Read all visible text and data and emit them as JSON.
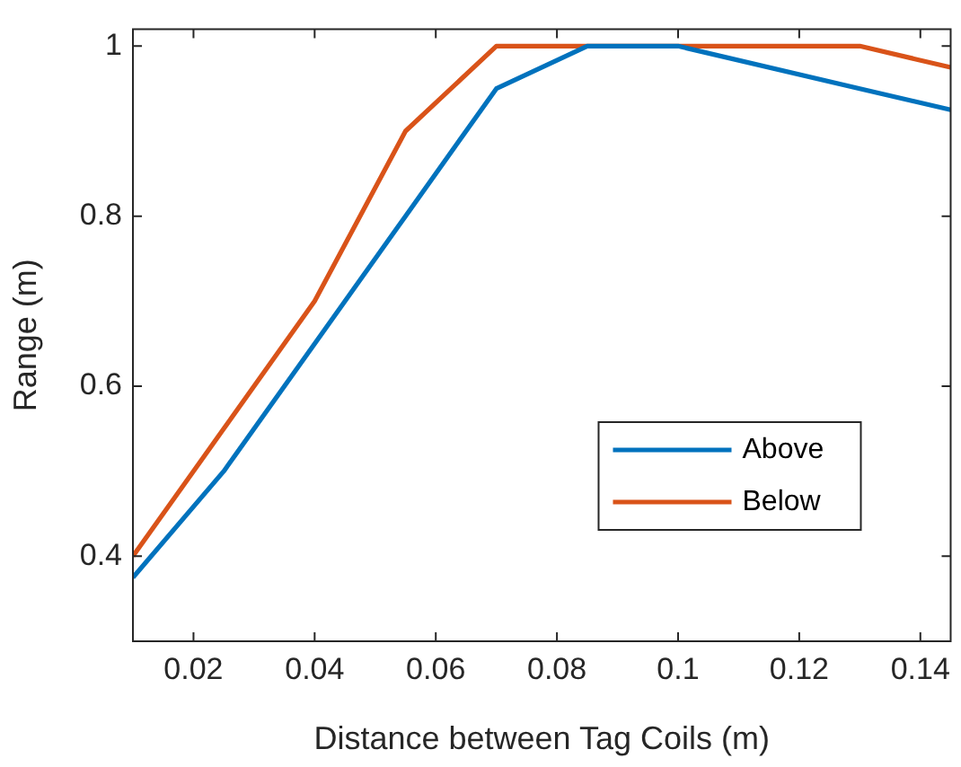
{
  "chart_data": {
    "type": "line",
    "xlabel": "Distance between Tag Coils (m)",
    "ylabel": "Range (m)",
    "x": [
      0.01,
      0.025,
      0.04,
      0.055,
      0.07,
      0.085,
      0.1,
      0.13,
      0.145
    ],
    "series": [
      {
        "name": "Above",
        "color": "#0072bd",
        "values": [
          0.375,
          0.5,
          0.65,
          0.8,
          0.95,
          1,
          1,
          0.95,
          0.925
        ]
      },
      {
        "name": "Below",
        "color": "#d95319",
        "values": [
          0.4,
          0.55,
          0.7,
          0.9,
          1,
          1,
          1,
          1,
          0.975
        ]
      }
    ],
    "xlim": [
      0.01,
      0.145
    ],
    "xticks": [
      0.02,
      0.04,
      0.06,
      0.08,
      0.1,
      0.12,
      0.14
    ],
    "ylim": [
      0.3,
      1.02
    ],
    "yticks": [
      0.4,
      0.6,
      0.8,
      1
    ],
    "grid": false,
    "legend": "bottom right",
    "marker": "none",
    "line_style": "solid"
  }
}
